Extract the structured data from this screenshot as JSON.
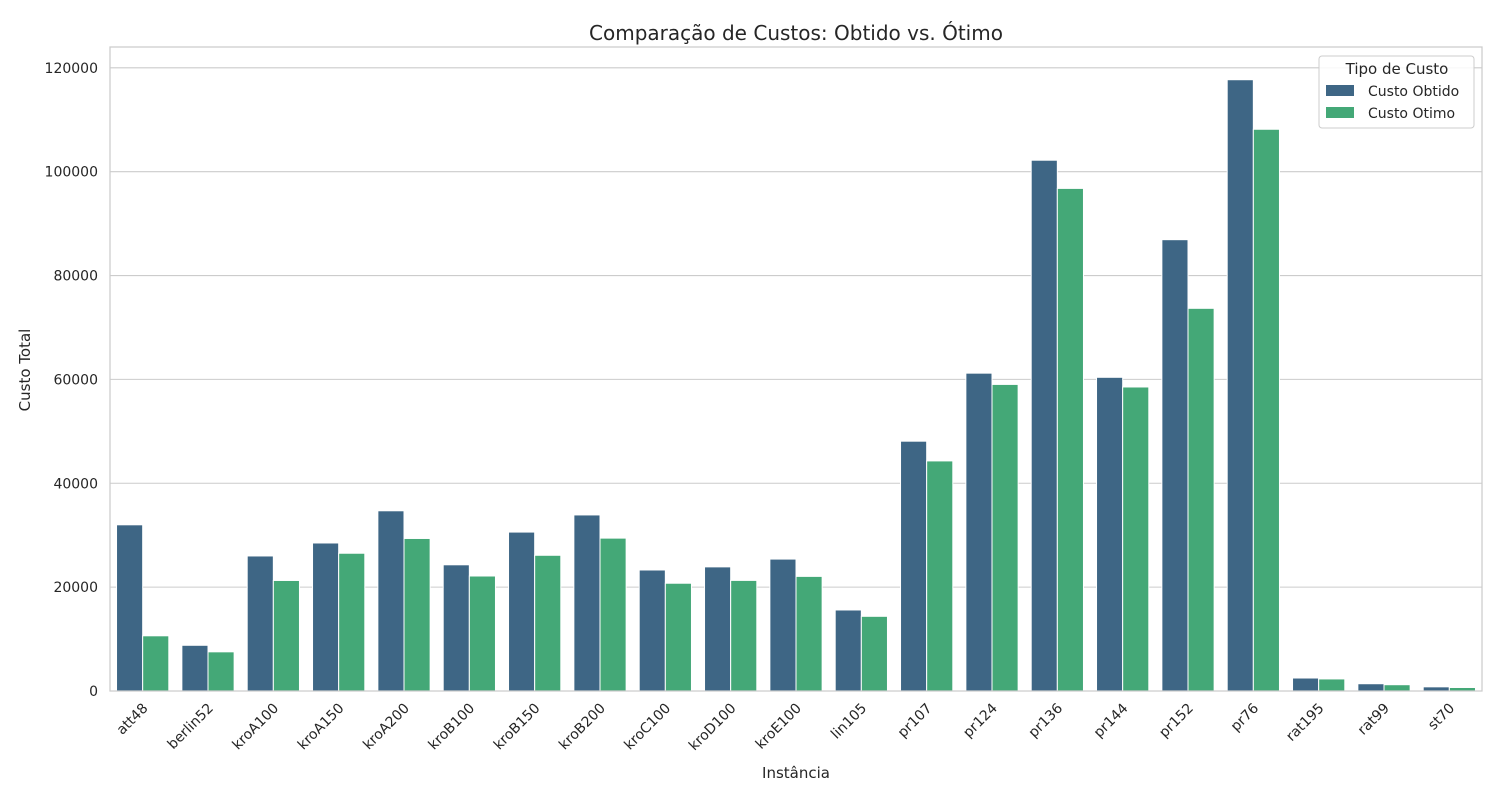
{
  "chart_data": {
    "type": "bar",
    "title": "Comparação de Custos: Obtido vs. Ótimo",
    "xlabel": "Instância",
    "ylabel": "Custo Total",
    "ylim": [
      0,
      124000
    ],
    "yticks": [
      0,
      20000,
      40000,
      60000,
      80000,
      100000,
      120000
    ],
    "grid": true,
    "legend": {
      "title": "Tipo de Custo",
      "placement": "top-right"
    },
    "categories": [
      "att48",
      "berlin52",
      "kroA100",
      "kroA150",
      "kroA200",
      "kroB100",
      "kroB150",
      "kroB200",
      "kroC100",
      "kroD100",
      "kroE100",
      "lin105",
      "pr107",
      "pr124",
      "pr136",
      "pr144",
      "pr152",
      "pr76",
      "rat195",
      "rat99",
      "st70"
    ],
    "series": [
      {
        "name": "Custo Obtido",
        "color": "#3e6685",
        "values": [
          32000,
          8800,
          26000,
          28500,
          34700,
          24300,
          30600,
          33900,
          23300,
          23900,
          25400,
          15600,
          48100,
          61200,
          102200,
          60400,
          86900,
          117700,
          2500,
          1400,
          800
        ]
      },
      {
        "name": "Custo Otimo",
        "color": "#44a877",
        "values": [
          10628,
          7542,
          21282,
          26524,
          29368,
          22141,
          26130,
          29437,
          20749,
          21294,
          22068,
          14379,
          44303,
          59030,
          96772,
          58537,
          73682,
          108159,
          2323,
          1211,
          675
        ]
      }
    ]
  }
}
